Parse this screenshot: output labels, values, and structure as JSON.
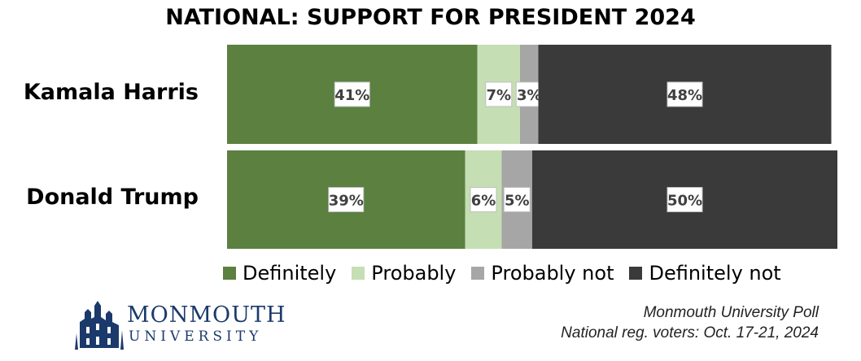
{
  "title": "NATIONAL: SUPPORT FOR PRESIDENT 2024",
  "colors": {
    "definitely": "#5b8040",
    "probably": "#c5deb3",
    "probably_not": "#a6a6a6",
    "definitely_not": "#3a3a3a"
  },
  "chart_data": {
    "type": "bar",
    "orientation": "horizontal",
    "stacked": true,
    "title": "NATIONAL: SUPPORT FOR PRESIDENT 2024",
    "categories": [
      "Kamala Harris",
      "Donald Trump"
    ],
    "series": [
      {
        "name": "Definitely",
        "values": [
          41,
          39
        ],
        "labels": [
          "41%",
          "39%"
        ],
        "color": "#5b8040"
      },
      {
        "name": "Probably",
        "values": [
          7,
          6
        ],
        "labels": [
          "7%",
          "6%"
        ],
        "color": "#c5deb3"
      },
      {
        "name": "Probably not",
        "values": [
          3,
          5
        ],
        "labels": [
          "3%",
          "5%"
        ],
        "color": "#a6a6a6"
      },
      {
        "name": "Definitely not",
        "values": [
          48,
          50
        ],
        "labels": [
          "48%",
          "50%"
        ],
        "color": "#3a3a3a"
      }
    ],
    "xlim": [
      0,
      100
    ],
    "legend_position": "bottom",
    "grid": false
  },
  "logo": {
    "name": "MONMOUTH",
    "sub": "UNIVERSITY"
  },
  "source": {
    "line1": "Monmouth University Poll",
    "line2": "National reg. voters: Oct. 17-21, 2024"
  }
}
